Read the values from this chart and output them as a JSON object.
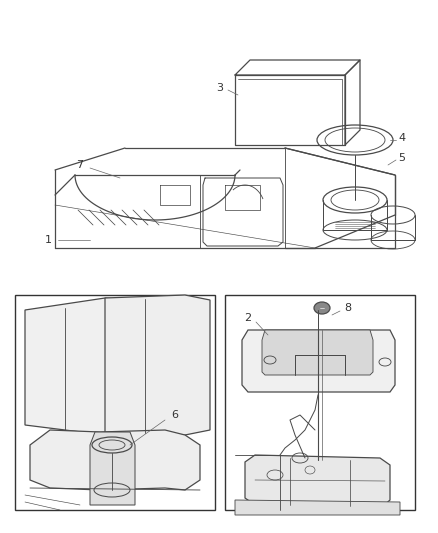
{
  "bg_color": "#ffffff",
  "line_color": "#4a4a4a",
  "lw": 0.9,
  "fig_width": 4.38,
  "fig_height": 5.33,
  "dpi": 100
}
